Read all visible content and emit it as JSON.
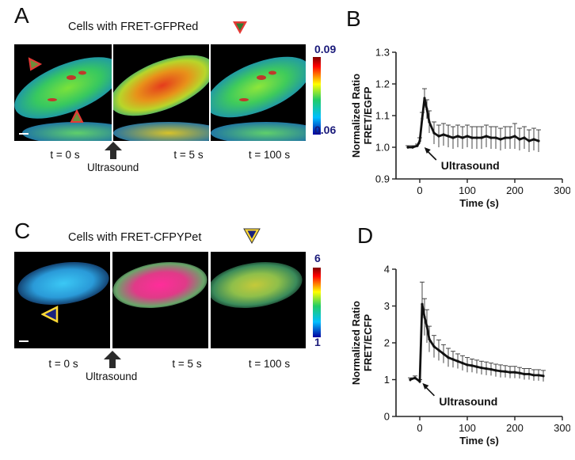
{
  "panels": {
    "A": {
      "letter": "A",
      "title": "Cells with FRET-GFPRed",
      "colorbar_max": "0.09",
      "colorbar_min": "0.06",
      "time_labels": [
        "t = 0 s",
        "t = 5 s",
        "t = 100 s"
      ],
      "stimulus_label": "Ultrasound",
      "marker_colors": {
        "fill": "#2e7d32",
        "border": "#e53935"
      }
    },
    "B": {
      "letter": "B"
    },
    "C": {
      "letter": "C",
      "title": "Cells with FRET-CFPYPet",
      "colorbar_max": "6",
      "colorbar_min": "1",
      "time_labels": [
        "t = 0 s",
        "t = 5 s",
        "t = 100 s"
      ],
      "stimulus_label": "Ultrasound",
      "marker_colors": {
        "fill": "#1a237e",
        "border": "#fdd835"
      }
    },
    "D": {
      "letter": "D"
    }
  },
  "chart_data": [
    {
      "id": "B",
      "type": "line",
      "ylabel": "Normalized Ratio FRET/EGFP",
      "ylabel_lines": [
        "Normalized Ratio",
        "FRET/EGFP"
      ],
      "xlabel": "Time (s)",
      "xlim": [
        -50,
        300
      ],
      "ylim": [
        0.9,
        1.3
      ],
      "xticks": [
        0,
        100,
        200,
        300
      ],
      "yticks": [
        0.9,
        1.0,
        1.1,
        1.2,
        1.3
      ],
      "ytick_labels": [
        "0.9",
        "1.0",
        "1.1",
        "1.2",
        "1.3"
      ],
      "annotation": "Ultrasound",
      "x": [
        -25,
        -15,
        -5,
        0,
        5,
        10,
        15,
        20,
        30,
        40,
        50,
        60,
        70,
        80,
        90,
        100,
        110,
        120,
        130,
        140,
        150,
        160,
        170,
        180,
        190,
        200,
        210,
        220,
        230,
        240,
        250
      ],
      "y": [
        1.0,
        1.0,
        1.005,
        1.02,
        1.09,
        1.155,
        1.12,
        1.08,
        1.045,
        1.035,
        1.04,
        1.035,
        1.03,
        1.035,
        1.03,
        1.035,
        1.03,
        1.03,
        1.03,
        1.035,
        1.03,
        1.03,
        1.025,
        1.03,
        1.03,
        1.035,
        1.025,
        1.03,
        1.02,
        1.025,
        1.02
      ],
      "err": [
        0.005,
        0.005,
        0.005,
        0.01,
        0.02,
        0.03,
        0.03,
        0.035,
        0.035,
        0.035,
        0.035,
        0.035,
        0.035,
        0.035,
        0.035,
        0.035,
        0.035,
        0.035,
        0.035,
        0.035,
        0.035,
        0.035,
        0.035,
        0.035,
        0.035,
        0.04,
        0.035,
        0.035,
        0.035,
        0.035,
        0.035
      ]
    },
    {
      "id": "D",
      "type": "line",
      "ylabel": "Normalized Ratio FRET/ECFP",
      "ylabel_lines": [
        "Normalized Ratio",
        "FRET/ECFP"
      ],
      "xlabel": "Time (s)",
      "xlim": [
        -50,
        300
      ],
      "ylim": [
        0,
        4
      ],
      "xticks": [
        0,
        100,
        200,
        300
      ],
      "yticks": [
        0,
        1,
        2,
        3,
        4
      ],
      "ytick_labels": [
        "0",
        "1",
        "2",
        "3",
        "4"
      ],
      "annotation": "Ultrasound",
      "x": [
        -20,
        -10,
        0,
        5,
        10,
        15,
        20,
        30,
        40,
        50,
        60,
        70,
        80,
        90,
        100,
        110,
        120,
        130,
        140,
        150,
        160,
        170,
        180,
        190,
        200,
        210,
        220,
        230,
        240,
        250,
        260
      ],
      "y": [
        1.0,
        1.05,
        0.95,
        3.05,
        2.7,
        2.45,
        2.1,
        1.9,
        1.8,
        1.7,
        1.6,
        1.55,
        1.5,
        1.45,
        1.4,
        1.38,
        1.35,
        1.32,
        1.3,
        1.28,
        1.25,
        1.23,
        1.22,
        1.2,
        1.2,
        1.18,
        1.15,
        1.15,
        1.12,
        1.12,
        1.1
      ],
      "err": [
        0.05,
        0.05,
        0.05,
        0.6,
        0.5,
        0.45,
        0.35,
        0.3,
        0.28,
        0.25,
        0.25,
        0.22,
        0.2,
        0.2,
        0.2,
        0.18,
        0.18,
        0.18,
        0.18,
        0.17,
        0.17,
        0.17,
        0.16,
        0.16,
        0.16,
        0.15,
        0.15,
        0.15,
        0.15,
        0.15,
        0.15
      ]
    }
  ]
}
